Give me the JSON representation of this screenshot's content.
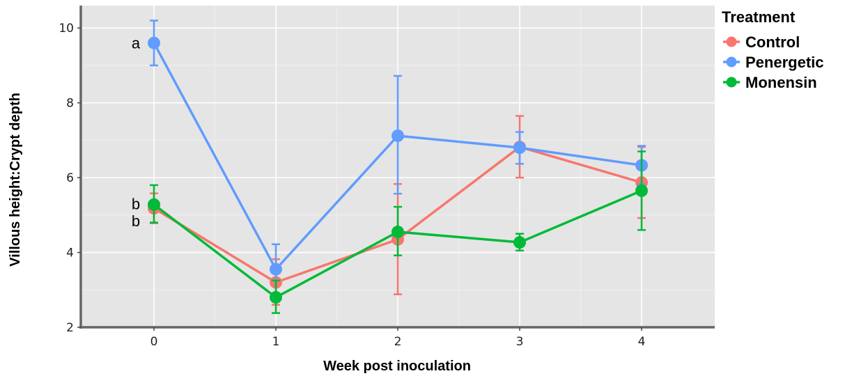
{
  "chart_data": {
    "type": "line",
    "xlabel": "Week post inoculation",
    "ylabel": "Villous height:Crypt depth",
    "x": [
      0,
      1,
      2,
      3,
      4
    ],
    "xticks": [
      "0",
      "1",
      "2",
      "3",
      "4"
    ],
    "yticks": [
      "2",
      "4",
      "6",
      "8",
      "10"
    ],
    "xlim": [
      -0.6,
      4.6
    ],
    "ylim": [
      2,
      10.6
    ],
    "grid": true,
    "legend_title": "Treatment",
    "legend_position": "top-right",
    "series": [
      {
        "name": "Control",
        "color": "#f8766d",
        "values": [
          5.18,
          3.2,
          4.35,
          6.82,
          5.87
        ],
        "err_low": [
          4.78,
          2.6,
          2.88,
          6.0,
          4.92
        ],
        "err_high": [
          5.58,
          3.82,
          5.83,
          7.65,
          6.82
        ]
      },
      {
        "name": "Penergetic",
        "color": "#619cff",
        "values": [
          9.6,
          3.55,
          7.12,
          6.8,
          6.33
        ],
        "err_low": [
          9.0,
          2.9,
          5.57,
          6.37,
          5.82
        ],
        "err_high": [
          10.2,
          4.22,
          8.72,
          7.22,
          6.85
        ]
      },
      {
        "name": "Monensin",
        "color": "#00ba38",
        "values": [
          5.28,
          2.8,
          4.55,
          4.27,
          5.65
        ],
        "err_low": [
          4.8,
          2.38,
          3.92,
          4.05,
          4.6
        ],
        "err_high": [
          5.8,
          3.25,
          5.22,
          4.5,
          6.7
        ]
      }
    ],
    "annotations": [
      {
        "text": "a",
        "x": 0,
        "y": 9.6
      },
      {
        "text": "b",
        "x": 0,
        "y": 5.3
      },
      {
        "text": "b",
        "x": 0,
        "y": 4.85
      }
    ]
  }
}
